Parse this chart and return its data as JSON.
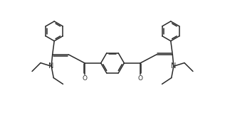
{
  "bg_color": "#ffffff",
  "line_color": "#2a2a2a",
  "line_width": 1.1,
  "font_size": 6.5,
  "figsize": [
    3.16,
    1.62
  ],
  "dpi": 100,
  "xlim": [
    0,
    10
  ],
  "ylim": [
    0,
    5.1
  ]
}
